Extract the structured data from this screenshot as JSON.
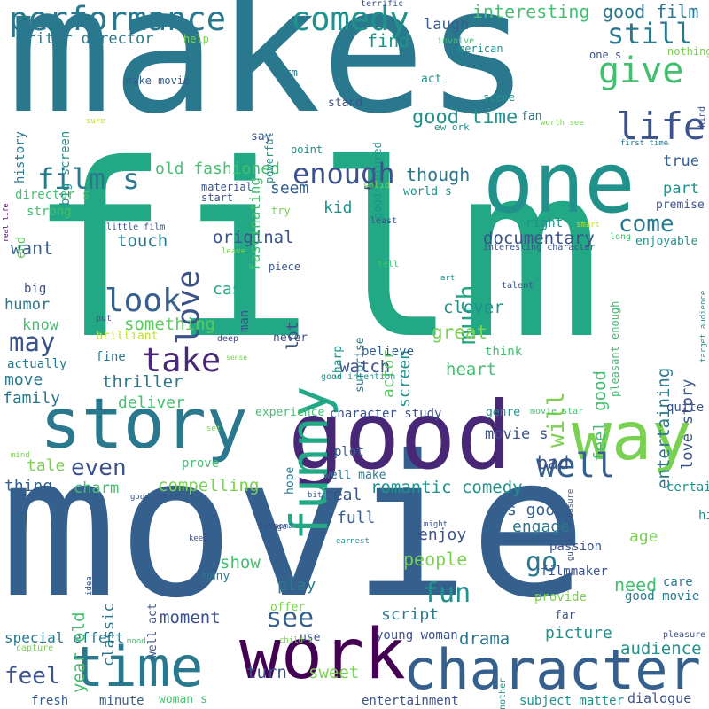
{
  "words": [
    {
      "text": "makes",
      "c": "#2a788e"
    },
    {
      "text": "film",
      "c": "#22a884"
    },
    {
      "text": "movie",
      "c": "#355f8d"
    },
    {
      "text": "one",
      "c": "#21918c"
    },
    {
      "text": "good",
      "c": "#482777"
    },
    {
      "text": "story",
      "c": "#2a788e"
    },
    {
      "text": "work",
      "c": "#440154"
    },
    {
      "text": "character",
      "c": "#355f8d"
    },
    {
      "text": "time",
      "c": "#2a788e"
    },
    {
      "text": "way",
      "c": "#7ad151"
    },
    {
      "text": "funny",
      "c": "#22a884"
    },
    {
      "text": "performance",
      "c": "#2a788e"
    },
    {
      "text": "comedy",
      "c": "#21918c"
    },
    {
      "text": "give",
      "c": "#44bf70"
    },
    {
      "text": "still",
      "c": "#2a788e"
    },
    {
      "text": "life",
      "c": "#3b528b"
    },
    {
      "text": "writer director",
      "c": "#2a788e"
    },
    {
      "text": "find",
      "c": "#21918c"
    },
    {
      "text": "interesting",
      "c": "#44bf70"
    },
    {
      "text": "good film",
      "c": "#2a788e"
    },
    {
      "text": "laugh",
      "c": "#355f8d"
    },
    {
      "text": "film s",
      "c": "#2a788e"
    },
    {
      "text": "love",
      "c": "#3b528b"
    },
    {
      "text": "enough",
      "c": "#3b528b"
    },
    {
      "text": "much",
      "c": "#22a884"
    },
    {
      "text": "though",
      "c": "#2a788e"
    },
    {
      "text": "good time",
      "c": "#21918c"
    },
    {
      "text": "old fashioned",
      "c": "#44bf70"
    },
    {
      "text": "seem",
      "c": "#355f8d"
    },
    {
      "text": "look",
      "c": "#355f8d"
    },
    {
      "text": "take",
      "c": "#482878"
    },
    {
      "text": "may",
      "c": "#3b528b"
    },
    {
      "text": "come",
      "c": "#2a788e"
    },
    {
      "text": "documentary",
      "c": "#3b528b"
    },
    {
      "text": "touch",
      "c": "#2a788e"
    },
    {
      "text": "original",
      "c": "#3b528b"
    },
    {
      "text": "kid",
      "c": "#21918c"
    },
    {
      "text": "true",
      "c": "#355f8d"
    },
    {
      "text": "part",
      "c": "#21918c"
    },
    {
      "text": "want",
      "c": "#355f8d"
    },
    {
      "text": "cast",
      "c": "#22a884"
    },
    {
      "text": "something",
      "c": "#5ec962"
    },
    {
      "text": "humor",
      "c": "#2a788e"
    },
    {
      "text": "know",
      "c": "#44bf70"
    },
    {
      "text": "thriller",
      "c": "#2a788e"
    },
    {
      "text": "watch",
      "c": "#3b528b"
    },
    {
      "text": "heart",
      "c": "#44bf70"
    },
    {
      "text": "great",
      "c": "#7ad151"
    },
    {
      "text": "clever",
      "c": "#21918c"
    },
    {
      "text": "will",
      "c": "#7ad151"
    },
    {
      "text": "feel good",
      "c": "#44bf70"
    },
    {
      "text": "entertaining",
      "c": "#2a788e"
    },
    {
      "text": "love story",
      "c": "#3b528b"
    },
    {
      "text": "deliver",
      "c": "#44bf70"
    },
    {
      "text": "family",
      "c": "#2a788e"
    },
    {
      "text": "move",
      "c": "#2a788e"
    },
    {
      "text": "even",
      "c": "#3b528b"
    },
    {
      "text": "well",
      "c": "#355f8d"
    },
    {
      "text": "see",
      "c": "#355f8d"
    },
    {
      "text": "go",
      "c": "#2a788e"
    },
    {
      "text": "fun",
      "c": "#21918c"
    },
    {
      "text": "movie s",
      "c": "#3b528b"
    },
    {
      "text": "bad",
      "c": "#3b528b"
    },
    {
      "text": "romantic comedy",
      "c": "#21918c"
    },
    {
      "text": "compelling",
      "c": "#7ad151"
    },
    {
      "text": "charm",
      "c": "#44bf70"
    },
    {
      "text": "thing",
      "c": "#355f8d"
    },
    {
      "text": "tale",
      "c": "#7ad151"
    },
    {
      "text": "real",
      "c": "#3b528b"
    },
    {
      "text": "full",
      "c": "#355f8d"
    },
    {
      "text": "s good",
      "c": "#355f8d"
    },
    {
      "text": "engage",
      "c": "#2a788e"
    },
    {
      "text": "enjoy",
      "c": "#3b528b"
    },
    {
      "text": "people",
      "c": "#7ad151"
    },
    {
      "text": "show",
      "c": "#44bf70"
    },
    {
      "text": "age",
      "c": "#7ad151"
    },
    {
      "text": "need",
      "c": "#44bf70"
    },
    {
      "text": "play",
      "c": "#2a788e"
    },
    {
      "text": "script",
      "c": "#2a788e"
    },
    {
      "text": "moment",
      "c": "#3b528b"
    },
    {
      "text": "drama",
      "c": "#2a788e"
    },
    {
      "text": "picture",
      "c": "#21918c"
    },
    {
      "text": "audience",
      "c": "#21918c"
    },
    {
      "text": "feel",
      "c": "#3b528b"
    },
    {
      "text": "turn",
      "c": "#3b528b"
    },
    {
      "text": "sweet",
      "c": "#7ad151"
    },
    {
      "text": "special effect",
      "c": "#2a788e"
    },
    {
      "text": "year old",
      "c": "#44bf70"
    },
    {
      "text": "classic",
      "c": "#2a788e"
    },
    {
      "text": "fresh",
      "c": "#355f8d"
    },
    {
      "text": "minute",
      "c": "#355f8d"
    },
    {
      "text": "entertainment",
      "c": "#3b528b"
    },
    {
      "text": "subject matter",
      "c": "#21918c"
    },
    {
      "text": "dialogue",
      "c": "#3b528b"
    },
    {
      "text": "young woman",
      "c": "#3b528b"
    },
    {
      "text": "woman s",
      "c": "#44bf70"
    },
    {
      "text": "actor",
      "c": "#5ec962"
    },
    {
      "text": "screen",
      "c": "#21918c"
    },
    {
      "text": "lot",
      "c": "#3b528b"
    },
    {
      "text": "man",
      "c": "#3b528b"
    },
    {
      "text": "believe",
      "c": "#355f8d"
    },
    {
      "text": "think",
      "c": "#44bf70"
    },
    {
      "text": "character study",
      "c": "#3b528b"
    },
    {
      "text": "experience",
      "c": "#44bf70"
    },
    {
      "text": "plot",
      "c": "#355f8d"
    },
    {
      "text": "genre",
      "c": "#21918c"
    },
    {
      "text": "quite",
      "c": "#3b528b"
    },
    {
      "text": "certainly",
      "c": "#21918c"
    },
    {
      "text": "high",
      "c": "#21918c"
    },
    {
      "text": "provide",
      "c": "#7ad151"
    },
    {
      "text": "good movie",
      "c": "#2a788e"
    },
    {
      "text": "care",
      "c": "#2a788e"
    },
    {
      "text": "passion",
      "c": "#3b528b"
    },
    {
      "text": "filmmaker",
      "c": "#3b528b"
    },
    {
      "text": "prove",
      "c": "#44bf70"
    },
    {
      "text": "hope",
      "c": "#2a788e"
    },
    {
      "text": "well make",
      "c": "#2a788e"
    },
    {
      "text": "well act",
      "c": "#3b528b"
    },
    {
      "text": "many",
      "c": "#2a788e"
    },
    {
      "text": "offer",
      "c": "#7ad151"
    },
    {
      "text": "use",
      "c": "#3b528b"
    },
    {
      "text": "far",
      "c": "#3b528b"
    },
    {
      "text": "actually",
      "c": "#2a788e"
    },
    {
      "text": "fine",
      "c": "#2a788e"
    },
    {
      "text": "brilliant",
      "c": "#bddf26"
    },
    {
      "text": "never",
      "c": "#3b528b"
    },
    {
      "text": "sharp",
      "c": "#21918c"
    },
    {
      "text": "surprise",
      "c": "#2a788e"
    },
    {
      "text": "big",
      "c": "#3b528b"
    },
    {
      "text": "strong",
      "c": "#44bf70"
    },
    {
      "text": "director s",
      "c": "#44bf70"
    },
    {
      "text": "end",
      "c": "#5ec962"
    },
    {
      "text": "history",
      "c": "#2a788e"
    },
    {
      "text": "big screen",
      "c": "#21918c"
    },
    {
      "text": "make movie",
      "c": "#355f8d"
    },
    {
      "text": "help",
      "c": "#7ad151"
    },
    {
      "text": "warm",
      "c": "#2a788e"
    },
    {
      "text": "merican",
      "c": "#21918c"
    },
    {
      "text": "involve",
      "c": "#44bf70"
    },
    {
      "text": "nothing",
      "c": "#7ad151"
    },
    {
      "text": "one s",
      "c": "#3b528b"
    },
    {
      "text": "powerful",
      "c": "#21918c"
    },
    {
      "text": "fascinating",
      "c": "#44bf70"
    },
    {
      "text": "good natured",
      "c": "#21918c"
    },
    {
      "text": "act",
      "c": "#21918c"
    },
    {
      "text": "scene",
      "c": "#21918c"
    },
    {
      "text": "stand",
      "c": "#3b528b"
    },
    {
      "text": "ew ork",
      "c": "#21918c"
    },
    {
      "text": "fan",
      "c": "#2a788e"
    },
    {
      "text": "worth see",
      "c": "#7ad151"
    },
    {
      "text": "kind",
      "c": "#3b528b"
    },
    {
      "text": "first time",
      "c": "#2a788e"
    },
    {
      "text": "say",
      "c": "#3b528b"
    },
    {
      "text": "point",
      "c": "#21918c"
    },
    {
      "text": "sure",
      "c": "#bddf26"
    },
    {
      "text": "terrific",
      "c": "#3b528b"
    },
    {
      "text": "material",
      "c": "#3b528b"
    },
    {
      "text": "start",
      "c": "#3b528b"
    },
    {
      "text": "try",
      "c": "#7ad151"
    },
    {
      "text": "solid",
      "c": "#7ad151"
    },
    {
      "text": "world s",
      "c": "#21918c"
    },
    {
      "text": "premise",
      "c": "#3b528b"
    },
    {
      "text": "right",
      "c": "#21918c"
    },
    {
      "text": "smart",
      "c": "#bddf26"
    },
    {
      "text": "enjoyable",
      "c": "#21918c"
    },
    {
      "text": "long",
      "c": "#44bf70"
    },
    {
      "text": "least",
      "c": "#3b528b"
    },
    {
      "text": "interesting character",
      "c": "#3b528b"
    },
    {
      "text": "little film",
      "c": "#3b528b"
    },
    {
      "text": "leave",
      "c": "#7ad151"
    },
    {
      "text": "real life",
      "c": "#440154"
    },
    {
      "text": "piece",
      "c": "#3b528b"
    },
    {
      "text": "tell",
      "c": "#44bf70"
    },
    {
      "text": "art",
      "c": "#21918c"
    },
    {
      "text": "talent",
      "c": "#3b528b"
    },
    {
      "text": "put",
      "c": "#3b528b"
    },
    {
      "text": "deep",
      "c": "#3b528b"
    },
    {
      "text": "sense",
      "c": "#7ad151"
    },
    {
      "text": "good intention",
      "c": "#21918c"
    },
    {
      "text": "pleasant enough",
      "c": "#44bf70"
    },
    {
      "text": "target audience",
      "c": "#21918c"
    },
    {
      "text": "set",
      "c": "#7ad151"
    },
    {
      "text": "movie star",
      "c": "#44bf70"
    },
    {
      "text": "mind",
      "c": "#7ad151"
    },
    {
      "text": "good actor",
      "c": "#3b528b"
    },
    {
      "text": "bit",
      "c": "#355f8d"
    },
    {
      "text": "manage",
      "c": "#3b528b"
    },
    {
      "text": "might",
      "c": "#3b528b"
    },
    {
      "text": "guilty pleasure",
      "c": "#3b528b"
    },
    {
      "text": "keep",
      "c": "#3b528b"
    },
    {
      "text": "cinema",
      "c": "#3b528b"
    },
    {
      "text": "earnest",
      "c": "#21918c"
    },
    {
      "text": "idea",
      "c": "#3b528b"
    },
    {
      "text": "mood",
      "c": "#44bf70"
    },
    {
      "text": "child s",
      "c": "#7ad151"
    },
    {
      "text": "capture",
      "c": "#7ad151"
    },
    {
      "text": "another",
      "c": "#21918c"
    },
    {
      "text": "pleasure",
      "c": "#3b528b"
    }
  ]
}
